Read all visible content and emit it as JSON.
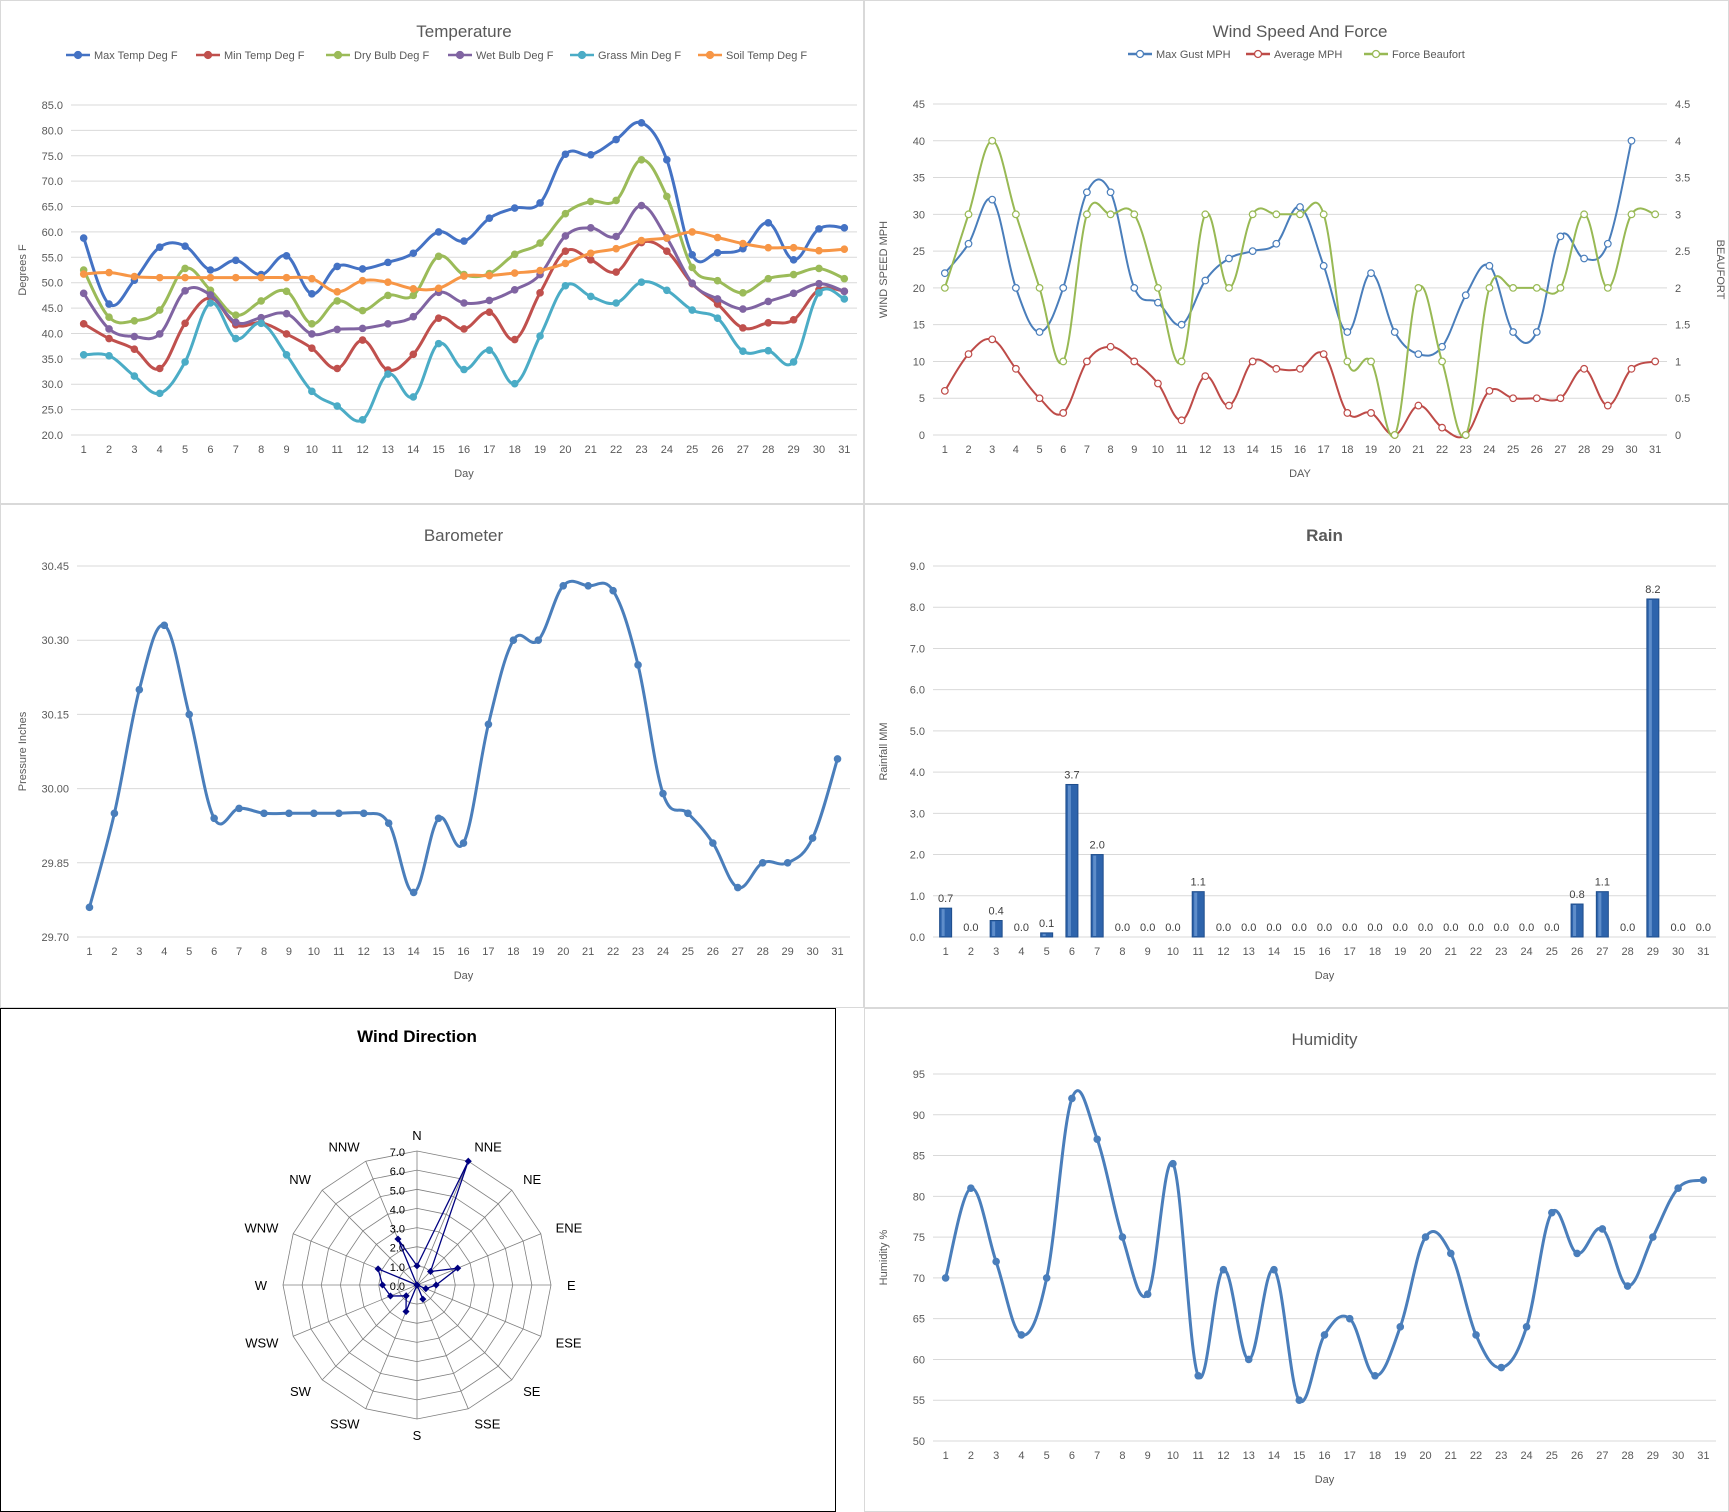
{
  "chart_data": [
    {
      "id": "temp",
      "type": "line",
      "title": "Temperature",
      "xlabel": "Day",
      "ylabel": "Degrees F",
      "ylim": [
        20,
        85
      ],
      "yticks": [
        "85.0",
        "80.0",
        "75.0",
        "70.0",
        "65.0",
        "60.0",
        "55.0",
        "50.0",
        "45.0",
        "40.0",
        "35.0",
        "30.0",
        "25.0",
        "20.0"
      ],
      "ytick_values": [
        85,
        80,
        75,
        70,
        65,
        60,
        55,
        50,
        45,
        40,
        35,
        30,
        25,
        20
      ],
      "categories": [
        "1",
        "2",
        "3",
        "4",
        "5",
        "6",
        "7",
        "8",
        "9",
        "10",
        "11",
        "12",
        "13",
        "14",
        "15",
        "16",
        "17",
        "18",
        "19",
        "20",
        "21",
        "22",
        "23",
        "24",
        "25",
        "26",
        "27",
        "28",
        "29",
        "30",
        "31"
      ],
      "legend_position": "top",
      "grid": true,
      "series": [
        {
          "name": "Max Temp Deg F",
          "color": "#4472c4",
          "values": [
            58.8,
            45.8,
            50.5,
            57,
            57.2,
            52.5,
            54.4,
            51.6,
            55.3,
            47.8,
            53.2,
            52.7,
            54,
            55.8,
            60,
            58.2,
            62.7,
            64.7,
            65.7,
            75.3,
            75.2,
            78.2,
            81.5,
            74.2,
            55.5,
            55.9,
            56.7,
            61.8,
            54.5,
            60.6,
            60.8
          ]
        },
        {
          "name": "Min Temp Deg F",
          "color": "#c0504d",
          "values": [
            41.9,
            39,
            36.9,
            33.1,
            42,
            47,
            41.7,
            42.1,
            39.9,
            37.1,
            33.1,
            38.7,
            32.8,
            35.9,
            43,
            40.9,
            44.2,
            38.8,
            48,
            56.2,
            54.5,
            52.1,
            57.9,
            56.2,
            49.8,
            45.8,
            41.1,
            42.1,
            42.7,
            48.6,
            48.3
          ]
        },
        {
          "name": "Dry Bulb Deg F",
          "color": "#9bbb59",
          "values": [
            52.5,
            43.2,
            42.5,
            44.6,
            52.8,
            48.5,
            43.6,
            46.4,
            48.3,
            41.9,
            46.4,
            44.5,
            47.5,
            47.5,
            55.2,
            51.6,
            51.8,
            55.6,
            57.8,
            63.6,
            66,
            66.2,
            74.2,
            67,
            53,
            50.4,
            48,
            50.8,
            51.6,
            52.8,
            50.8
          ]
        },
        {
          "name": "Wet Bulb Deg F",
          "color": "#8064a2",
          "values": [
            47.9,
            40.9,
            39.4,
            39.9,
            48.4,
            47.6,
            42.2,
            43.1,
            43.9,
            39.9,
            40.8,
            41,
            41.9,
            43.3,
            48.1,
            46,
            46.5,
            48.6,
            51.6,
            59.2,
            60.8,
            59.1,
            65.2,
            58.8,
            49.9,
            46.8,
            44.8,
            46.3,
            47.9,
            49.8,
            48.3
          ]
        },
        {
          "name": "Grass Min Deg F",
          "color": "#4bacc6",
          "values": [
            35.8,
            35.6,
            31.6,
            28.2,
            34.4,
            46,
            39,
            42,
            35.8,
            28.6,
            25.7,
            23,
            32,
            27.5,
            38,
            32.9,
            36.7,
            30.1,
            39.5,
            49.4,
            47.3,
            46,
            50.1,
            48.5,
            44.6,
            43,
            36.5,
            36.6,
            34.4,
            48,
            46.8
          ]
        },
        {
          "name": "Soil Temp Deg F",
          "color": "#f79646",
          "values": [
            51.7,
            52,
            51.2,
            51,
            51,
            51,
            51,
            51,
            51,
            50.8,
            48.2,
            50.4,
            50.1,
            48.8,
            48.9,
            51.3,
            51.4,
            51.9,
            52.4,
            53.8,
            55.8,
            56.7,
            58.3,
            58.8,
            60,
            58.9,
            57.7,
            56.9,
            56.9,
            56.3,
            56.6
          ]
        }
      ]
    },
    {
      "id": "wind",
      "type": "line",
      "title": "Wind Speed And Force",
      "xlabel": "DAY",
      "ylabel": "WIND SPEED MPH",
      "y2label": "BEAUFORT",
      "ylim": [
        0,
        45
      ],
      "y2lim": [
        0,
        4.5
      ],
      "yticks": [
        "45",
        "40",
        "35",
        "30",
        "25",
        "20",
        "15",
        "10",
        "5",
        "0"
      ],
      "ytick_values": [
        45,
        40,
        35,
        30,
        25,
        20,
        15,
        10,
        5,
        0
      ],
      "y2ticks": [
        "4.5",
        "4",
        "3.5",
        "3",
        "2.5",
        "2",
        "1.5",
        "1",
        "0.5",
        "0"
      ],
      "categories": [
        "1",
        "2",
        "3",
        "4",
        "5",
        "6",
        "7",
        "8",
        "9",
        "10",
        "11",
        "12",
        "13",
        "14",
        "15",
        "16",
        "17",
        "18",
        "19",
        "20",
        "21",
        "22",
        "23",
        "24",
        "25",
        "26",
        "27",
        "28",
        "29",
        "30",
        "31"
      ],
      "legend_position": "top",
      "grid": true,
      "series": [
        {
          "name": "Max Gust MPH",
          "color": "#4a7ebb",
          "axis": "left",
          "values": [
            22,
            26,
            32,
            20,
            14,
            20,
            33,
            33,
            20,
            18,
            15,
            21,
            24,
            25,
            26,
            31,
            23,
            14,
            22,
            14,
            11,
            12,
            19,
            23,
            14,
            14,
            27,
            24,
            26,
            40,
            null
          ]
        },
        {
          "name": "Average MPH",
          "color": "#be4b48",
          "axis": "left",
          "values": [
            6,
            11,
            13,
            9,
            5,
            3,
            10,
            12,
            10,
            7,
            2,
            8,
            4,
            10,
            9,
            9,
            11,
            3,
            3,
            0,
            4,
            1,
            0,
            6,
            5,
            5,
            5,
            9,
            4,
            9,
            10
          ]
        },
        {
          "name": "Force Beaufort",
          "color": "#98b954",
          "axis": "right",
          "values": [
            2,
            3,
            4,
            3,
            2,
            1,
            3,
            3,
            3,
            2,
            1,
            3,
            2,
            3,
            3,
            3,
            3,
            1,
            1,
            0,
            2,
            1,
            0,
            2,
            2,
            2,
            2,
            3,
            2,
            3,
            3
          ]
        }
      ]
    },
    {
      "id": "baro",
      "type": "line",
      "title": "Barometer",
      "xlabel": "Day",
      "ylabel": "Pressure Inches",
      "ylim": [
        29.7,
        30.45
      ],
      "yticks": [
        "30.45",
        "30.30",
        "30.15",
        "30.00",
        "29.85",
        "29.70"
      ],
      "ytick_values": [
        30.45,
        30.3,
        30.15,
        30,
        29.85,
        29.7
      ],
      "categories": [
        "1",
        "2",
        "3",
        "4",
        "5",
        "6",
        "7",
        "8",
        "9",
        "10",
        "11",
        "12",
        "13",
        "14",
        "15",
        "16",
        "17",
        "18",
        "19",
        "20",
        "21",
        "22",
        "23",
        "24",
        "25",
        "26",
        "27",
        "28",
        "29",
        "30",
        "31"
      ],
      "grid": true,
      "series": [
        {
          "color": "#4a7ebb",
          "values": [
            29.76,
            29.95,
            30.2,
            30.33,
            30.15,
            29.94,
            29.96,
            29.95,
            29.95,
            29.95,
            29.95,
            29.95,
            29.93,
            29.79,
            29.94,
            29.89,
            30.13,
            30.3,
            30.3,
            30.41,
            30.41,
            30.4,
            30.25,
            29.99,
            29.95,
            29.89,
            29.8,
            29.85,
            29.85,
            29.9,
            30.06
          ]
        }
      ]
    },
    {
      "id": "rain",
      "type": "bar",
      "title": "Rain",
      "xlabel": "Day",
      "ylabel": "Rainfall MM",
      "ylim": [
        0,
        9
      ],
      "yticks": [
        "9.0",
        "8.0",
        "7.0",
        "6.0",
        "5.0",
        "4.0",
        "3.0",
        "2.0",
        "1.0",
        "0.0"
      ],
      "ytick_values": [
        9,
        8,
        7,
        6,
        5,
        4,
        3,
        2,
        1,
        0
      ],
      "categories": [
        "1",
        "2",
        "3",
        "4",
        "5",
        "6",
        "7",
        "8",
        "9",
        "10",
        "11",
        "12",
        "13",
        "14",
        "15",
        "16",
        "17",
        "18",
        "19",
        "20",
        "21",
        "22",
        "23",
        "24",
        "25",
        "26",
        "27",
        "28",
        "29",
        "30",
        "31"
      ],
      "grid": true,
      "bar_color": "#2e64ac",
      "values": [
        0.7,
        0,
        0.4,
        0,
        0.1,
        3.7,
        2,
        0,
        0,
        0,
        1.1,
        0,
        0,
        0,
        0,
        0,
        0,
        0,
        0,
        0,
        0,
        0,
        0,
        0,
        0,
        0.8,
        1.1,
        0,
        8.2,
        0,
        0
      ],
      "data_labels": [
        "0.7",
        "0.0",
        "0.4",
        "0.0",
        "0.1",
        "3.7",
        "2.0",
        "0.0",
        "0.0",
        "0.0",
        "1.1",
        "0.0",
        "0.0",
        "0.0",
        "0.0",
        "0.0",
        "0.0",
        "0.0",
        "0.0",
        "0.0",
        "0.0",
        "0.0",
        "0.0",
        "0.0",
        "0.0",
        "0.8",
        "1.1",
        "0.0",
        "8.2",
        "0.0",
        "0.0"
      ]
    },
    {
      "id": "dir",
      "type": "radar",
      "title": "Wind Direction",
      "rlim": [
        0,
        7
      ],
      "rticks": [
        "7.0",
        "6.0",
        "5.0",
        "4.0",
        "3.0",
        "2.0",
        "1.0",
        "0.0"
      ],
      "rtick_values": [
        7,
        6,
        5,
        4,
        3,
        2,
        1,
        0
      ],
      "categories": [
        "N",
        "NNE",
        "NE",
        "ENE",
        "E",
        "ESE",
        "SE",
        "SSE",
        "S",
        "SSW",
        "SW",
        "WSW",
        "W",
        "WNW",
        "NW",
        "NNW"
      ],
      "grid": true,
      "series": [
        {
          "color": "#000080",
          "values": [
            1,
            7,
            1,
            2.3,
            1,
            0.5,
            0,
            0.8,
            0,
            1.5,
            0.8,
            1.5,
            1.8,
            2.2,
            0,
            2.6
          ]
        }
      ]
    },
    {
      "id": "hum",
      "type": "line",
      "title": "Humidity",
      "xlabel": "Day",
      "ylabel": "Humidity %",
      "ylim": [
        50,
        95
      ],
      "yticks": [
        "95",
        "90",
        "85",
        "80",
        "75",
        "70",
        "65",
        "60",
        "55",
        "50"
      ],
      "ytick_values": [
        95,
        90,
        85,
        80,
        75,
        70,
        65,
        60,
        55,
        50
      ],
      "categories": [
        "1",
        "2",
        "3",
        "4",
        "5",
        "6",
        "7",
        "8",
        "9",
        "10",
        "11",
        "12",
        "13",
        "14",
        "15",
        "16",
        "17",
        "18",
        "19",
        "20",
        "21",
        "22",
        "23",
        "24",
        "25",
        "26",
        "27",
        "28",
        "29",
        "30",
        "31"
      ],
      "grid": true,
      "series": [
        {
          "color": "#4a7ebb",
          "values": [
            70,
            81,
            72,
            63,
            70,
            92,
            87,
            75,
            68,
            84,
            58,
            71,
            60,
            71,
            55,
            63,
            65,
            58,
            64,
            75,
            73,
            63,
            59,
            64,
            78,
            73,
            76,
            69,
            75,
            81,
            82
          ]
        }
      ]
    }
  ]
}
